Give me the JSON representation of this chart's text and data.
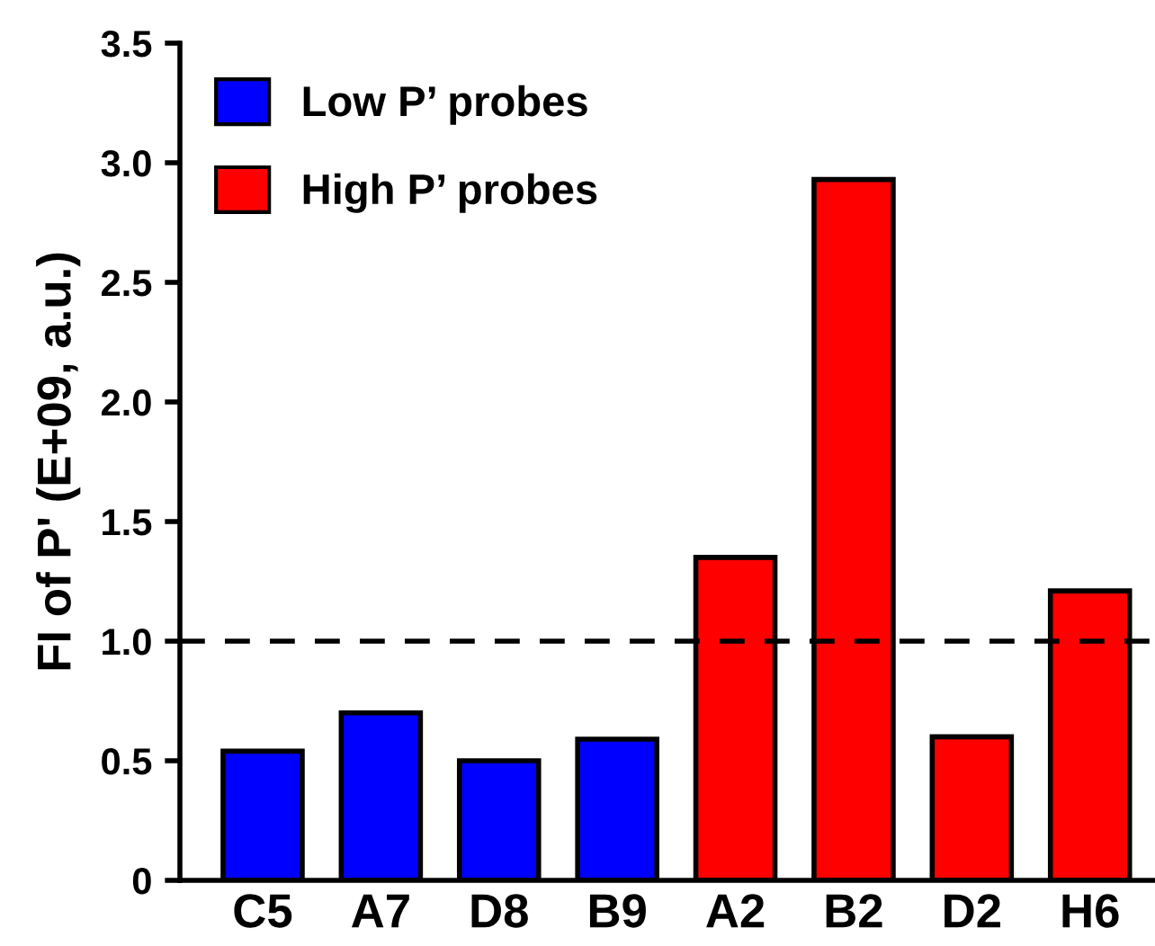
{
  "chart_data": {
    "type": "bar",
    "ylabel": "FI of P' (E+09, a.u.)",
    "categories": [
      "C5",
      "A7",
      "D8",
      "B9",
      "A2",
      "B2",
      "D2",
      "H6"
    ],
    "series": [
      {
        "name": "Low P’ probes",
        "color": "#0000ff",
        "values": [
          0.54,
          0.7,
          0.5,
          0.59,
          null,
          null,
          null,
          null
        ]
      },
      {
        "name": "High P’ probes",
        "color": "#ff0000",
        "values": [
          null,
          null,
          null,
          null,
          1.35,
          2.93,
          0.6,
          1.21
        ]
      }
    ],
    "ylim": [
      0,
      3.5
    ],
    "yticks": [
      0,
      0.5,
      {
        "value": 1,
        "label": "1.0"
      },
      1.5,
      {
        "value": 2,
        "label": "2.0"
      },
      2.5,
      {
        "value": 3,
        "label": "3.0"
      },
      3.5
    ],
    "ref_lines": [
      {
        "axis": "y",
        "value": 1,
        "color": "#000000",
        "line_style": "dashed"
      }
    ],
    "legend": "top left"
  }
}
